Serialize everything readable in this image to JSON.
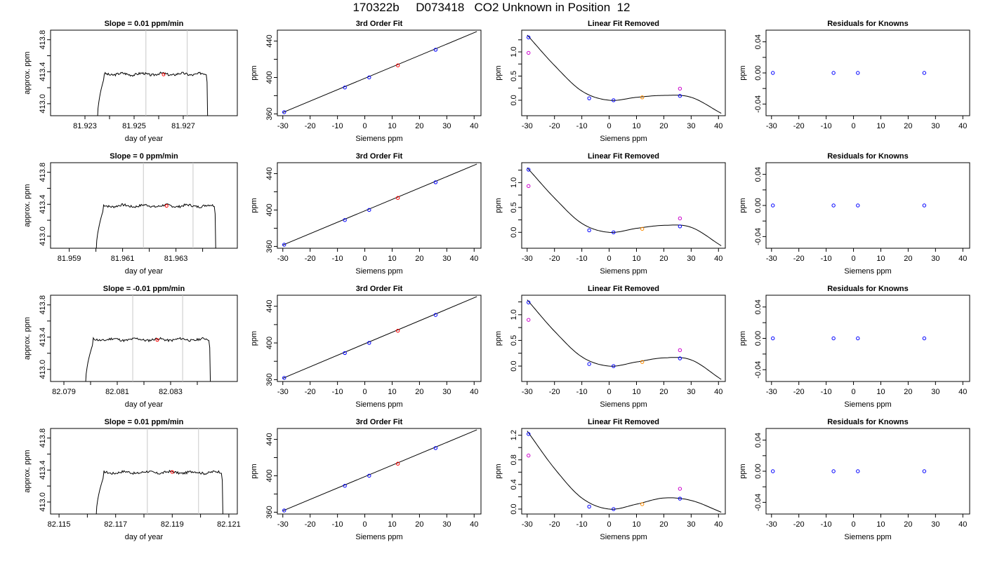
{
  "page": {
    "title": "170322b     D073418   CO2 Unknown in Position  12"
  },
  "colors": {
    "axis": "#000000",
    "trace": "#000000",
    "vline": "#c8c8c8",
    "known_point": "#0000ff",
    "unknown_point": "#ff0000",
    "sample_point": "#ff8c00",
    "raw_point": "#cc00cc"
  },
  "chart_data": [
    {
      "type": "line",
      "row": 0,
      "col": 0,
      "title": "Slope =  0.01  ppm/min",
      "xlabel": "day of year",
      "ylabel": "approx. ppm",
      "xlim": [
        81.9216,
        81.9292
      ],
      "ylim": [
        412.85,
        413.92
      ],
      "xticks": [
        81.923,
        81.925,
        81.927
      ],
      "xtick_labels": [
        "81.923",
        "81.925",
        "81.927"
      ],
      "xminor": [
        81.924,
        81.926
      ],
      "yticks": [
        413.0,
        413.4,
        413.8
      ],
      "ytick_labels": [
        "413.0",
        "413.4",
        "413.8"
      ],
      "yminor": [
        413.2,
        413.6
      ],
      "trace": {
        "x_start": 81.9235,
        "x_end": 81.928,
        "plateau": 413.37,
        "seed": 3
      },
      "vlines": [
        81.92548,
        81.92716
      ],
      "marker": {
        "x": 81.9262,
        "y": 413.365
      }
    },
    {
      "type": "scatter",
      "row": 0,
      "col": 1,
      "title": "3rd Order Fit",
      "xlabel": "Siemens ppm",
      "ylabel": "ppm",
      "xlim": [
        -32,
        42.5
      ],
      "ylim": [
        358,
        452
      ],
      "xticks": [
        -30,
        -20,
        -10,
        0,
        10,
        20,
        30,
        40
      ],
      "yticks": [
        360,
        400,
        440
      ],
      "yminor": [
        380,
        420
      ],
      "fit_line": {
        "x": [
          -30,
          41
        ],
        "y": [
          361.5,
          450.5
        ]
      },
      "points": [
        {
          "x": -29.5,
          "y": 361.9,
          "kind": "known"
        },
        {
          "x": -7.3,
          "y": 389.0,
          "kind": "known"
        },
        {
          "x": 1.6,
          "y": 400.1,
          "kind": "known"
        },
        {
          "x": 12.1,
          "y": 413.3,
          "kind": "unknown"
        },
        {
          "x": 25.9,
          "y": 430.5,
          "kind": "known"
        }
      ]
    },
    {
      "type": "line",
      "row": 0,
      "col": 2,
      "title": "Linear Fit Removed",
      "xlabel": "Siemens ppm",
      "ylabel": "ppm",
      "xlim": [
        -32,
        42.5
      ],
      "ylim": [
        -0.32,
        1.45
      ],
      "xticks": [
        -30,
        -20,
        -10,
        0,
        10,
        20,
        30,
        40
      ],
      "yticks": [
        0.0,
        0.5,
        1.0
      ],
      "ytick_labels": [
        "0.0",
        "0.5",
        "1.0"
      ],
      "yminor": [
        0.25,
        0.75,
        1.25
      ],
      "curve": {
        "x": [
          -30,
          -20,
          -10,
          0,
          10,
          20,
          30,
          41
        ],
        "y": [
          1.35,
          0.72,
          0.19,
          0.0,
          0.06,
          0.1,
          0.06,
          -0.27
        ]
      },
      "points": [
        {
          "x": -29.5,
          "y": 1.3,
          "kind": "known"
        },
        {
          "x": -29.5,
          "y": 0.98,
          "kind": "raw"
        },
        {
          "x": -7.3,
          "y": 0.04,
          "kind": "known"
        },
        {
          "x": 1.6,
          "y": 0.0,
          "kind": "known"
        },
        {
          "x": 12.1,
          "y": 0.06,
          "kind": "sample"
        },
        {
          "x": 25.9,
          "y": 0.09,
          "kind": "known"
        },
        {
          "x": 25.9,
          "y": 0.24,
          "kind": "raw"
        }
      ]
    },
    {
      "type": "scatter",
      "row": 0,
      "col": 3,
      "title": "Residuals for Knowns",
      "xlabel": "",
      "ylabel": "ppm",
      "xlim": [
        -32,
        42.5
      ],
      "ylim": [
        -0.055,
        0.055
      ],
      "xticks": [
        -30,
        -20,
        -10,
        0,
        10,
        20,
        30,
        40
      ],
      "yticks": [
        -0.04,
        0.0,
        0.04
      ],
      "ytick_labels": [
        "-0.04",
        "0.00",
        "0.04"
      ],
      "yminor": [
        -0.02,
        0.02
      ],
      "points": [
        {
          "x": -29.5,
          "y": 0.0,
          "kind": "known"
        },
        {
          "x": -7.3,
          "y": 0.0,
          "kind": "known"
        },
        {
          "x": 1.6,
          "y": 0.0,
          "kind": "known"
        },
        {
          "x": 25.9,
          "y": 0.0,
          "kind": "known"
        }
      ]
    },
    {
      "type": "line",
      "row": 1,
      "col": 0,
      "title": "Slope =  0  ppm/min",
      "xlabel": "day of year",
      "ylabel": "approx. ppm",
      "xlim": [
        81.9583,
        81.9653
      ],
      "ylim": [
        412.85,
        413.92
      ],
      "xticks": [
        81.959,
        81.961,
        81.963
      ],
      "xtick_labels": [
        "81.959",
        "81.961",
        "81.963"
      ],
      "xminor": [
        81.96,
        81.962,
        81.964
      ],
      "yticks": [
        413.0,
        413.4,
        413.8
      ],
      "ytick_labels": [
        "413.0",
        "413.4",
        "413.8"
      ],
      "yminor": [
        413.2,
        413.6
      ],
      "trace": {
        "x_start": 81.96,
        "x_end": 81.9645,
        "plateau": 413.38,
        "seed": 7
      },
      "vlines": [
        81.96178,
        81.96364
      ],
      "marker": {
        "x": 81.96265,
        "y": 413.38
      }
    },
    {
      "type": "scatter",
      "row": 1,
      "col": 1,
      "title": "3rd Order Fit",
      "xlabel": "Siemens ppm",
      "ylabel": "ppm",
      "xlim": [
        -32,
        42.5
      ],
      "ylim": [
        358,
        452
      ],
      "xticks": [
        -30,
        -20,
        -10,
        0,
        10,
        20,
        30,
        40
      ],
      "yticks": [
        360,
        400,
        440
      ],
      "yminor": [
        380,
        420
      ],
      "fit_line": {
        "x": [
          -30,
          41
        ],
        "y": [
          361.5,
          450.5
        ]
      },
      "points": [
        {
          "x": -29.5,
          "y": 361.9,
          "kind": "known"
        },
        {
          "x": -7.3,
          "y": 389.0,
          "kind": "known"
        },
        {
          "x": 1.6,
          "y": 400.1,
          "kind": "known"
        },
        {
          "x": 12.1,
          "y": 413.3,
          "kind": "unknown"
        },
        {
          "x": 25.9,
          "y": 430.5,
          "kind": "known"
        }
      ]
    },
    {
      "type": "line",
      "row": 1,
      "col": 2,
      "title": "Linear Fit Removed",
      "xlabel": "Siemens ppm",
      "ylabel": "ppm",
      "xlim": [
        -32,
        42.5
      ],
      "ylim": [
        -0.32,
        1.4
      ],
      "xticks": [
        -30,
        -20,
        -10,
        0,
        10,
        20,
        30,
        40
      ],
      "yticks": [
        0.0,
        0.5,
        1.0
      ],
      "ytick_labels": [
        "0.0",
        "0.5",
        "1.0"
      ],
      "yminor": [
        0.25,
        0.75,
        1.25
      ],
      "curve": {
        "x": [
          -30,
          -20,
          -10,
          0,
          10,
          20,
          30,
          41
        ],
        "y": [
          1.3,
          0.69,
          0.18,
          0.0,
          0.08,
          0.14,
          0.1,
          -0.27
        ]
      },
      "points": [
        {
          "x": -29.5,
          "y": 1.26,
          "kind": "known"
        },
        {
          "x": -29.5,
          "y": 0.93,
          "kind": "raw"
        },
        {
          "x": -7.3,
          "y": 0.04,
          "kind": "known"
        },
        {
          "x": 1.6,
          "y": 0.0,
          "kind": "known"
        },
        {
          "x": 12.1,
          "y": 0.07,
          "kind": "sample"
        },
        {
          "x": 25.9,
          "y": 0.12,
          "kind": "known"
        },
        {
          "x": 25.9,
          "y": 0.28,
          "kind": "raw"
        }
      ]
    },
    {
      "type": "scatter",
      "row": 1,
      "col": 3,
      "title": "Residuals for Knowns",
      "xlabel": "Siemens ppm",
      "ylabel": "ppm",
      "xlim": [
        -32,
        42.5
      ],
      "ylim": [
        -0.055,
        0.055
      ],
      "xticks": [
        -30,
        -20,
        -10,
        0,
        10,
        20,
        30,
        40
      ],
      "yticks": [
        -0.04,
        0.0,
        0.04
      ],
      "ytick_labels": [
        "-0.04",
        "0.00",
        "0.04"
      ],
      "yminor": [
        -0.02,
        0.02
      ],
      "points": [
        {
          "x": -29.5,
          "y": 0.0,
          "kind": "known"
        },
        {
          "x": -7.3,
          "y": 0.0,
          "kind": "known"
        },
        {
          "x": 1.6,
          "y": 0.0,
          "kind": "known"
        },
        {
          "x": 25.9,
          "y": 0.0,
          "kind": "known"
        }
      ]
    },
    {
      "type": "line",
      "row": 2,
      "col": 0,
      "title": "Slope =  -0.01  ppm/min",
      "xlabel": "day of year",
      "ylabel": "approx. ppm",
      "xlim": [
        82.0785,
        82.0855
      ],
      "ylim": [
        412.85,
        413.92
      ],
      "xticks": [
        82.079,
        82.081,
        82.083
      ],
      "xtick_labels": [
        "82.079",
        "82.081",
        "82.083"
      ],
      "xminor": [
        82.08,
        82.082,
        82.084
      ],
      "yticks": [
        413.0,
        413.4,
        413.8
      ],
      "ytick_labels": [
        "413.0",
        "413.4",
        "413.8"
      ],
      "yminor": [
        413.2,
        413.6
      ],
      "trace": {
        "x_start": 82.0798,
        "x_end": 82.0845,
        "plateau": 413.37,
        "seed": 11
      },
      "vlines": [
        82.08158,
        82.08345
      ],
      "marker": {
        "x": 82.0825,
        "y": 413.365
      }
    },
    {
      "type": "scatter",
      "row": 2,
      "col": 1,
      "title": "3rd Order Fit",
      "xlabel": "Siemens ppm",
      "ylabel": "ppm",
      "xlim": [
        -32,
        42.5
      ],
      "ylim": [
        358,
        452
      ],
      "xticks": [
        -30,
        -20,
        -10,
        0,
        10,
        20,
        30,
        40
      ],
      "yticks": [
        360,
        400,
        440
      ],
      "yminor": [
        380,
        420
      ],
      "fit_line": {
        "x": [
          -30,
          41
        ],
        "y": [
          361.5,
          450.5
        ]
      },
      "points": [
        {
          "x": -29.5,
          "y": 361.9,
          "kind": "known"
        },
        {
          "x": -7.3,
          "y": 389.0,
          "kind": "known"
        },
        {
          "x": 1.6,
          "y": 400.1,
          "kind": "known"
        },
        {
          "x": 12.1,
          "y": 413.3,
          "kind": "unknown"
        },
        {
          "x": 25.9,
          "y": 430.5,
          "kind": "known"
        }
      ]
    },
    {
      "type": "line",
      "row": 2,
      "col": 2,
      "title": "Linear Fit Removed",
      "xlabel": "Siemens ppm",
      "ylabel": "ppm",
      "xlim": [
        -32,
        42.5
      ],
      "ylim": [
        -0.3,
        1.38
      ],
      "xticks": [
        -30,
        -20,
        -10,
        0,
        10,
        20,
        30,
        40
      ],
      "yticks": [
        0.0,
        0.5,
        1.0
      ],
      "ytick_labels": [
        "0.0",
        "0.5",
        "1.0"
      ],
      "yminor": [
        0.25,
        0.75,
        1.25
      ],
      "curve": {
        "x": [
          -30,
          -20,
          -10,
          0,
          10,
          20,
          30,
          41
        ],
        "y": [
          1.29,
          0.68,
          0.18,
          0.0,
          0.08,
          0.16,
          0.12,
          -0.26
        ]
      },
      "points": [
        {
          "x": -29.5,
          "y": 1.24,
          "kind": "known"
        },
        {
          "x": -29.5,
          "y": 0.9,
          "kind": "raw"
        },
        {
          "x": -7.3,
          "y": 0.04,
          "kind": "known"
        },
        {
          "x": 1.6,
          "y": 0.0,
          "kind": "known"
        },
        {
          "x": 12.1,
          "y": 0.08,
          "kind": "sample"
        },
        {
          "x": 25.9,
          "y": 0.15,
          "kind": "known"
        },
        {
          "x": 25.9,
          "y": 0.31,
          "kind": "raw"
        }
      ]
    },
    {
      "type": "scatter",
      "row": 2,
      "col": 3,
      "title": "Residuals for Knowns",
      "xlabel": "Siemens ppm",
      "ylabel": "ppm",
      "xlim": [
        -32,
        42.5
      ],
      "ylim": [
        -0.055,
        0.055
      ],
      "xticks": [
        -30,
        -20,
        -10,
        0,
        10,
        20,
        30,
        40
      ],
      "yticks": [
        -0.04,
        0.0,
        0.04
      ],
      "ytick_labels": [
        "-0.04",
        "0.00",
        "0.04"
      ],
      "yminor": [
        -0.02,
        0.02
      ],
      "points": [
        {
          "x": -29.5,
          "y": 0.0,
          "kind": "known"
        },
        {
          "x": -7.3,
          "y": 0.0,
          "kind": "known"
        },
        {
          "x": 1.6,
          "y": 0.0,
          "kind": "known"
        },
        {
          "x": 25.9,
          "y": 0.0,
          "kind": "known"
        }
      ]
    },
    {
      "type": "line",
      "row": 3,
      "col": 0,
      "title": "Slope =  0.01  ppm/min",
      "xlabel": "day of year",
      "ylabel": "approx. ppm",
      "xlim": [
        82.1147,
        82.1213
      ],
      "ylim": [
        412.85,
        413.92
      ],
      "xticks": [
        82.115,
        82.117,
        82.119,
        82.121
      ],
      "xtick_labels": [
        "82.115",
        "82.117",
        "82.119",
        "82.121"
      ],
      "xminor": [
        82.116,
        82.118,
        82.12
      ],
      "yticks": [
        413.0,
        413.4,
        413.8
      ],
      "ytick_labels": [
        "413.0",
        "413.4",
        "413.8"
      ],
      "yminor": [
        413.2,
        413.6
      ],
      "trace": {
        "x_start": 82.1163,
        "x_end": 82.1208,
        "plateau": 413.37,
        "seed": 17
      },
      "vlines": [
        82.11812,
        82.11993
      ],
      "marker": {
        "x": 82.119,
        "y": 413.375
      }
    },
    {
      "type": "scatter",
      "row": 3,
      "col": 1,
      "title": "3rd Order Fit",
      "xlabel": "Siemens ppm",
      "ylabel": "ppm",
      "xlim": [
        -32,
        42.5
      ],
      "ylim": [
        358,
        452
      ],
      "xticks": [
        -30,
        -20,
        -10,
        0,
        10,
        20,
        30,
        40
      ],
      "yticks": [
        360,
        400,
        440
      ],
      "yminor": [
        380,
        420
      ],
      "fit_line": {
        "x": [
          -30,
          41
        ],
        "y": [
          361.5,
          450.5
        ]
      },
      "points": [
        {
          "x": -29.5,
          "y": 361.9,
          "kind": "known"
        },
        {
          "x": -7.3,
          "y": 389.0,
          "kind": "known"
        },
        {
          "x": 1.6,
          "y": 400.1,
          "kind": "known"
        },
        {
          "x": 12.1,
          "y": 413.3,
          "kind": "unknown"
        },
        {
          "x": 25.9,
          "y": 430.5,
          "kind": "known"
        }
      ]
    },
    {
      "type": "line",
      "row": 3,
      "col": 2,
      "title": "Linear Fit Removed",
      "xlabel": "Siemens ppm",
      "ylabel": "ppm",
      "xlim": [
        -32,
        42.5
      ],
      "ylim": [
        -0.08,
        1.31
      ],
      "xticks": [
        -30,
        -20,
        -10,
        0,
        10,
        20,
        30,
        40
      ],
      "yticks": [
        0.0,
        0.4,
        0.8,
        1.2
      ],
      "ytick_labels": [
        "0.0",
        "0.4",
        "0.8",
        "1.2"
      ],
      "yminor": [
        0.2,
        0.6,
        1.0
      ],
      "curve": {
        "x": [
          -30,
          -20,
          -10,
          0,
          10,
          20,
          30,
          41
        ],
        "y": [
          1.27,
          0.66,
          0.18,
          0.0,
          0.08,
          0.18,
          0.14,
          -0.05
        ]
      },
      "points": [
        {
          "x": -29.5,
          "y": 1.22,
          "kind": "known"
        },
        {
          "x": -29.5,
          "y": 0.87,
          "kind": "raw"
        },
        {
          "x": -7.3,
          "y": 0.04,
          "kind": "known"
        },
        {
          "x": 1.6,
          "y": 0.0,
          "kind": "known"
        },
        {
          "x": 12.1,
          "y": 0.08,
          "kind": "sample"
        },
        {
          "x": 25.9,
          "y": 0.17,
          "kind": "known"
        },
        {
          "x": 25.9,
          "y": 0.33,
          "kind": "raw"
        }
      ]
    },
    {
      "type": "scatter",
      "row": 3,
      "col": 3,
      "title": "Residuals for Knowns",
      "xlabel": "Siemens ppm",
      "ylabel": "ppm",
      "xlim": [
        -32,
        42.5
      ],
      "ylim": [
        -0.055,
        0.055
      ],
      "xticks": [
        -30,
        -20,
        -10,
        0,
        10,
        20,
        30,
        40
      ],
      "yticks": [
        -0.04,
        0.0,
        0.04
      ],
      "ytick_labels": [
        "-0.04",
        "0.00",
        "0.04"
      ],
      "yminor": [
        -0.02,
        0.02
      ],
      "points": [
        {
          "x": -29.5,
          "y": 0.0,
          "kind": "known"
        },
        {
          "x": -7.3,
          "y": 0.0,
          "kind": "known"
        },
        {
          "x": 1.6,
          "y": 0.0,
          "kind": "known"
        },
        {
          "x": 25.9,
          "y": 0.0,
          "kind": "known"
        }
      ]
    }
  ]
}
